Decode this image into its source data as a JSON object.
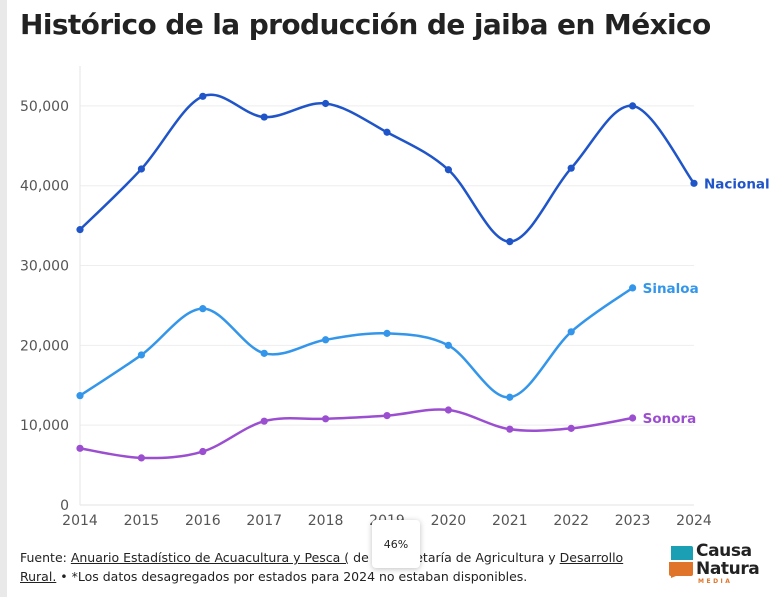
{
  "chart_data": {
    "type": "line",
    "title": "Histórico de la producción de jaiba en México",
    "xlabel": "",
    "ylabel": "",
    "x": [
      "2014",
      "2015",
      "2016",
      "2017",
      "2018",
      "2019",
      "2020",
      "2021",
      "2022",
      "2023",
      "2024"
    ],
    "ylim": [
      0,
      55000
    ],
    "yticks": [
      0,
      10000,
      20000,
      30000,
      40000,
      50000
    ],
    "ytick_labels": [
      "0",
      "10,000",
      "20,000",
      "30,000",
      "40,000",
      "50,000"
    ],
    "grid": true,
    "legend": "end-of-line labels",
    "series": [
      {
        "name": "Nacional",
        "color": "#1f55c8",
        "values": [
          34500,
          42100,
          51200,
          48600,
          50300,
          46700,
          42000,
          33000,
          42200,
          50000,
          40300
        ]
      },
      {
        "name": "Sinaloa",
        "color": "#3396ea",
        "values": [
          13700,
          18800,
          24600,
          19000,
          20700,
          21500,
          20000,
          13500,
          21700,
          27200,
          null
        ]
      },
      {
        "name": "Sonora",
        "color": "#9b4fd0",
        "values": [
          7100,
          5900,
          6700,
          10500,
          10800,
          11200,
          11900,
          9500,
          9600,
          10900,
          null
        ]
      }
    ]
  },
  "footer": {
    "prefix": "Fuente: ",
    "link1": "Anuario Estadístico de Acuacultura y Pesca (",
    "mid": " de la Secretaría de Agricultura y",
    "link2": "Desarrollo Rural.",
    "note": " • *Los datos desagregados por estados para 2024 no estaban disponibles."
  },
  "zoom_badge": "46%",
  "logo": {
    "line1": "Causa",
    "line2": "Natura",
    "sub": "MEDIA",
    "colors": [
      "#1a9fb5",
      "#e0742a"
    ]
  }
}
